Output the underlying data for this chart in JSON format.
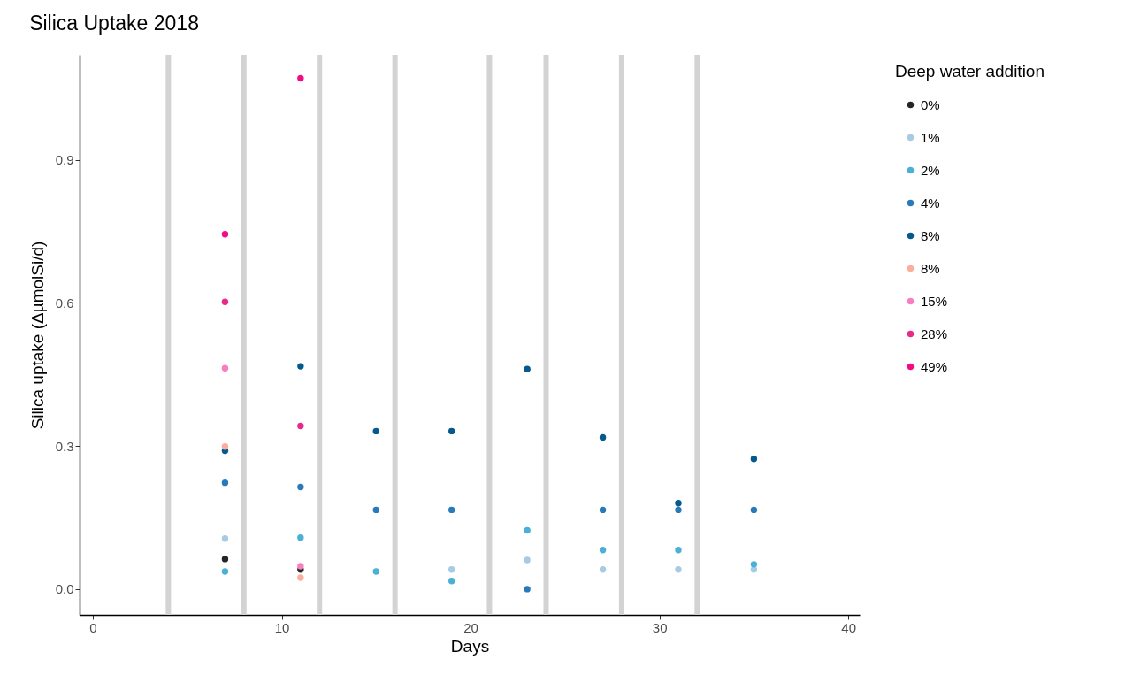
{
  "chart_data": {
    "type": "scatter",
    "title": "Silica Uptake 2018",
    "xlabel": "Days",
    "ylabel": "Silica uptake (ΔµmolSi/d)",
    "legend_title": "Deep water addition",
    "legend": "right",
    "grid": false,
    "marker": "circle",
    "x": [
      7,
      11,
      15,
      19,
      23,
      27,
      31,
      35
    ],
    "xlim": [
      -0.7,
      40.6
    ],
    "xticks": [
      0,
      10,
      20,
      30,
      40
    ],
    "ylim": [
      -0.054,
      1.12
    ],
    "yticks": [
      {
        "value": 0,
        "label": "0.0"
      },
      0.3,
      0.6,
      0.9
    ],
    "ref_lines": [
      {
        "axis": "x",
        "value": 4,
        "color": "#d3d3d3"
      },
      {
        "axis": "x",
        "value": 8,
        "color": "#d3d3d3"
      },
      {
        "axis": "x",
        "value": 12,
        "color": "#d3d3d3"
      },
      {
        "axis": "x",
        "value": 16,
        "color": "#d3d3d3"
      },
      {
        "axis": "x",
        "value": 21,
        "color": "#d3d3d3"
      },
      {
        "axis": "x",
        "value": 24,
        "color": "#d3d3d3"
      },
      {
        "axis": "x",
        "value": 28,
        "color": "#d3d3d3"
      },
      {
        "axis": "x",
        "value": 32,
        "color": "#d3d3d3"
      }
    ],
    "series": [
      {
        "name": "0%",
        "color": "#252525",
        "values": [
          0.063,
          0.041,
          null,
          null,
          null,
          null,
          null,
          null
        ]
      },
      {
        "name": "1%",
        "color": "#a6cbe3",
        "values": [
          0.106,
          null,
          null,
          0.041,
          0.061,
          0.041,
          0.041,
          0.041
        ]
      },
      {
        "name": "2%",
        "color": "#4bb0d6",
        "values": [
          0.037,
          0.108,
          0.037,
          0.017,
          0.123,
          0.082,
          0.082,
          0.052
        ]
      },
      {
        "name": "4%",
        "color": "#2a7ab9",
        "values": [
          0.223,
          0.214,
          0.166,
          0.166,
          0.0,
          0.166,
          0.166,
          0.166
        ]
      },
      {
        "name": "8%",
        "color": "#045a8d",
        "values": [
          0.29,
          0.467,
          0.331,
          0.331,
          0.461,
          0.318,
          0.18,
          0.273
        ]
      },
      {
        "name": "8%",
        "color": "#fcae9e",
        "values": [
          0.299,
          0.024,
          null,
          null,
          null,
          null,
          null,
          null
        ]
      },
      {
        "name": "15%",
        "color": "#f77fbe",
        "values": [
          0.463,
          0.048,
          null,
          null,
          null,
          null,
          null,
          null
        ]
      },
      {
        "name": "28%",
        "color": "#e7298a",
        "values": [
          0.602,
          0.342,
          null,
          null,
          null,
          null,
          null,
          null
        ]
      },
      {
        "name": "49%",
        "color": "#f30a85",
        "values": [
          0.744,
          1.071,
          null,
          null,
          null,
          null,
          null,
          null
        ]
      }
    ]
  }
}
